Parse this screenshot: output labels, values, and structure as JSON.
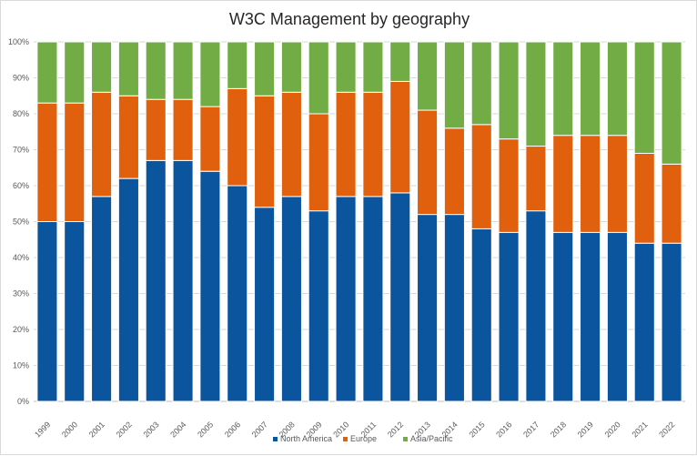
{
  "chart_data": {
    "type": "bar",
    "stacked": true,
    "normalized": true,
    "title": "W3C Management by geography",
    "xlabel": "",
    "ylabel": "",
    "ylim": [
      0,
      100
    ],
    "y_ticks": [
      "0%",
      "10%",
      "20%",
      "30%",
      "40%",
      "50%",
      "60%",
      "70%",
      "80%",
      "90%",
      "100%"
    ],
    "grid": true,
    "legend_position": "bottom",
    "categories": [
      "1999",
      "2000",
      "2001",
      "2002",
      "2003",
      "2004",
      "2005",
      "2006",
      "2007",
      "2008",
      "2009",
      "2010",
      "2011",
      "2012",
      "2013",
      "2014",
      "2015",
      "2016",
      "2017",
      "2018",
      "2019",
      "2020",
      "2021",
      "2022"
    ],
    "series": [
      {
        "name": "North America",
        "color": "#0b559f",
        "values": [
          50,
          50,
          57,
          62,
          67,
          67,
          64,
          60,
          54,
          57,
          53,
          57,
          57,
          58,
          52,
          52,
          48,
          47,
          53,
          47,
          47,
          47,
          44,
          44
        ]
      },
      {
        "name": "Europe",
        "color": "#e0600e",
        "values": [
          33,
          33,
          29,
          23,
          17,
          17,
          18,
          27,
          31,
          29,
          27,
          29,
          29,
          31,
          29,
          24,
          29,
          26,
          18,
          27,
          27,
          27,
          25,
          22
        ]
      },
      {
        "name": "Asia/Pacific",
        "color": "#72ac44",
        "values": [
          17,
          17,
          14,
          15,
          16,
          16,
          18,
          13,
          15,
          14,
          20,
          14,
          14,
          11,
          19,
          24,
          23,
          27,
          29,
          26,
          26,
          26,
          31,
          34
        ]
      }
    ]
  }
}
